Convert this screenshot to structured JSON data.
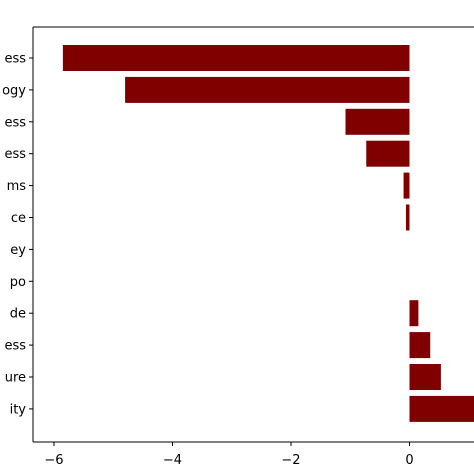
{
  "chart_data": {
    "type": "bar",
    "orientation": "horizontal",
    "categories": [
      "ess",
      "ogy",
      "ess",
      "ess",
      "ms",
      "ce",
      "ey",
      "po",
      "de",
      "ess",
      "ure",
      "ity"
    ],
    "values": [
      -5.85,
      -4.8,
      -1.08,
      -0.73,
      -0.1,
      -0.06,
      0.0,
      0.0,
      0.15,
      0.35,
      0.53,
      1.1
    ],
    "xlim": [
      -6.25,
      1.1
    ],
    "xticks": [
      -6,
      -4,
      -2,
      0
    ],
    "xtick_labels": [
      "−6",
      "−4",
      "−2",
      "0"
    ],
    "bar_color": "#800000",
    "title": "",
    "xlabel": "",
    "ylabel": "",
    "grid": false
  }
}
